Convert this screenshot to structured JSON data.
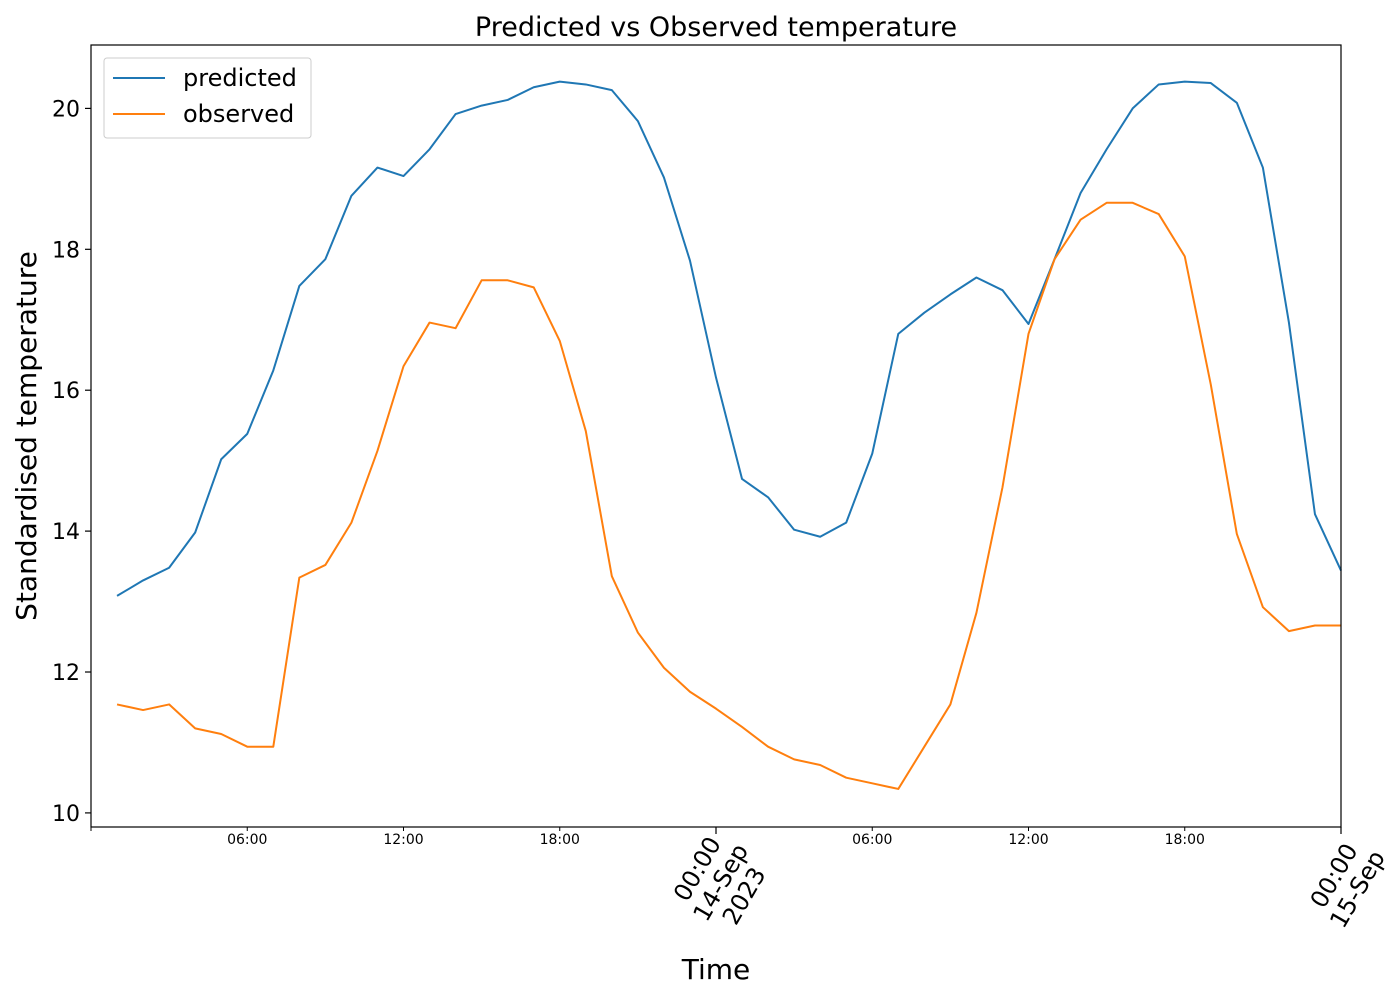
{
  "chart_data": {
    "type": "line",
    "title": "Predicted vs Observed temperature",
    "xlabel": "Time",
    "ylabel": "Standardised temperature",
    "xlim": [
      "2023-09-13 00:00",
      "2023-09-15 00:00"
    ],
    "ylim": [
      9.8,
      20.9
    ],
    "y_ticks": [
      10,
      12,
      14,
      16,
      18,
      20
    ],
    "x_minor_ticks": [
      {
        "x": "2023-09-13 06:00",
        "label": "06:00"
      },
      {
        "x": "2023-09-13 12:00",
        "label": "12:00"
      },
      {
        "x": "2023-09-13 18:00",
        "label": "18:00"
      },
      {
        "x": "2023-09-14 06:00",
        "label": "06:00"
      },
      {
        "x": "2023-09-14 12:00",
        "label": "12:00"
      },
      {
        "x": "2023-09-14 18:00",
        "label": "18:00"
      }
    ],
    "x_major_ticks": [
      {
        "x": "2023-09-14 00:00",
        "lines": [
          "00:00",
          "14-Sep",
          "2023"
        ]
      },
      {
        "x": "2023-09-15 00:00",
        "lines": [
          "00:00",
          "15-Sep"
        ]
      }
    ],
    "x": [
      "2023-09-13 01:00",
      "2023-09-13 02:00",
      "2023-09-13 03:00",
      "2023-09-13 04:00",
      "2023-09-13 05:00",
      "2023-09-13 06:00",
      "2023-09-13 07:00",
      "2023-09-13 08:00",
      "2023-09-13 09:00",
      "2023-09-13 10:00",
      "2023-09-13 11:00",
      "2023-09-13 12:00",
      "2023-09-13 13:00",
      "2023-09-13 14:00",
      "2023-09-13 15:00",
      "2023-09-13 16:00",
      "2023-09-13 17:00",
      "2023-09-13 18:00",
      "2023-09-13 19:00",
      "2023-09-13 20:00",
      "2023-09-13 21:00",
      "2023-09-13 22:00",
      "2023-09-13 23:00",
      "2023-09-14 00:00",
      "2023-09-14 01:00",
      "2023-09-14 02:00",
      "2023-09-14 03:00",
      "2023-09-14 04:00",
      "2023-09-14 05:00",
      "2023-09-14 06:00",
      "2023-09-14 07:00",
      "2023-09-14 08:00",
      "2023-09-14 09:00",
      "2023-09-14 10:00",
      "2023-09-14 11:00",
      "2023-09-14 12:00",
      "2023-09-14 13:00",
      "2023-09-14 14:00",
      "2023-09-14 15:00",
      "2023-09-14 16:00",
      "2023-09-14 17:00",
      "2023-09-14 18:00",
      "2023-09-14 19:00",
      "2023-09-14 20:00",
      "2023-09-14 21:00",
      "2023-09-14 22:00",
      "2023-09-14 23:00",
      "2023-09-15 00:00"
    ],
    "series": [
      {
        "name": "predicted",
        "color": "#1f77b4",
        "values": [
          13.08,
          13.3,
          13.48,
          13.98,
          15.02,
          15.38,
          16.28,
          17.48,
          17.86,
          18.76,
          19.16,
          19.04,
          19.42,
          19.92,
          20.04,
          20.12,
          20.3,
          20.38,
          20.34,
          20.26,
          19.82,
          19.02,
          17.84,
          16.18,
          14.74,
          14.48,
          14.02,
          13.92,
          14.12,
          15.1,
          16.8,
          17.1,
          17.36,
          17.6,
          17.42,
          16.94,
          17.86,
          18.8,
          19.42,
          20.0,
          20.34,
          20.38,
          20.36,
          20.08,
          19.16,
          16.96,
          14.24,
          13.44
        ]
      },
      {
        "name": "observed",
        "color": "#ff7f0e",
        "values": [
          11.54,
          11.46,
          11.54,
          11.2,
          11.12,
          10.94,
          10.94,
          13.34,
          13.52,
          14.12,
          15.14,
          16.34,
          16.96,
          16.88,
          17.56,
          17.56,
          17.46,
          16.7,
          15.42,
          13.36,
          12.56,
          12.06,
          11.72,
          11.48,
          11.22,
          10.94,
          10.76,
          10.68,
          10.5,
          10.42,
          10.34,
          10.94,
          11.54,
          12.84,
          14.62,
          16.8,
          17.86,
          18.42,
          18.66,
          18.66,
          18.5,
          17.9,
          16.08,
          13.96,
          12.92,
          12.58,
          12.66,
          12.66
        ]
      }
    ],
    "legend_position": "top-left",
    "grid": false
  }
}
